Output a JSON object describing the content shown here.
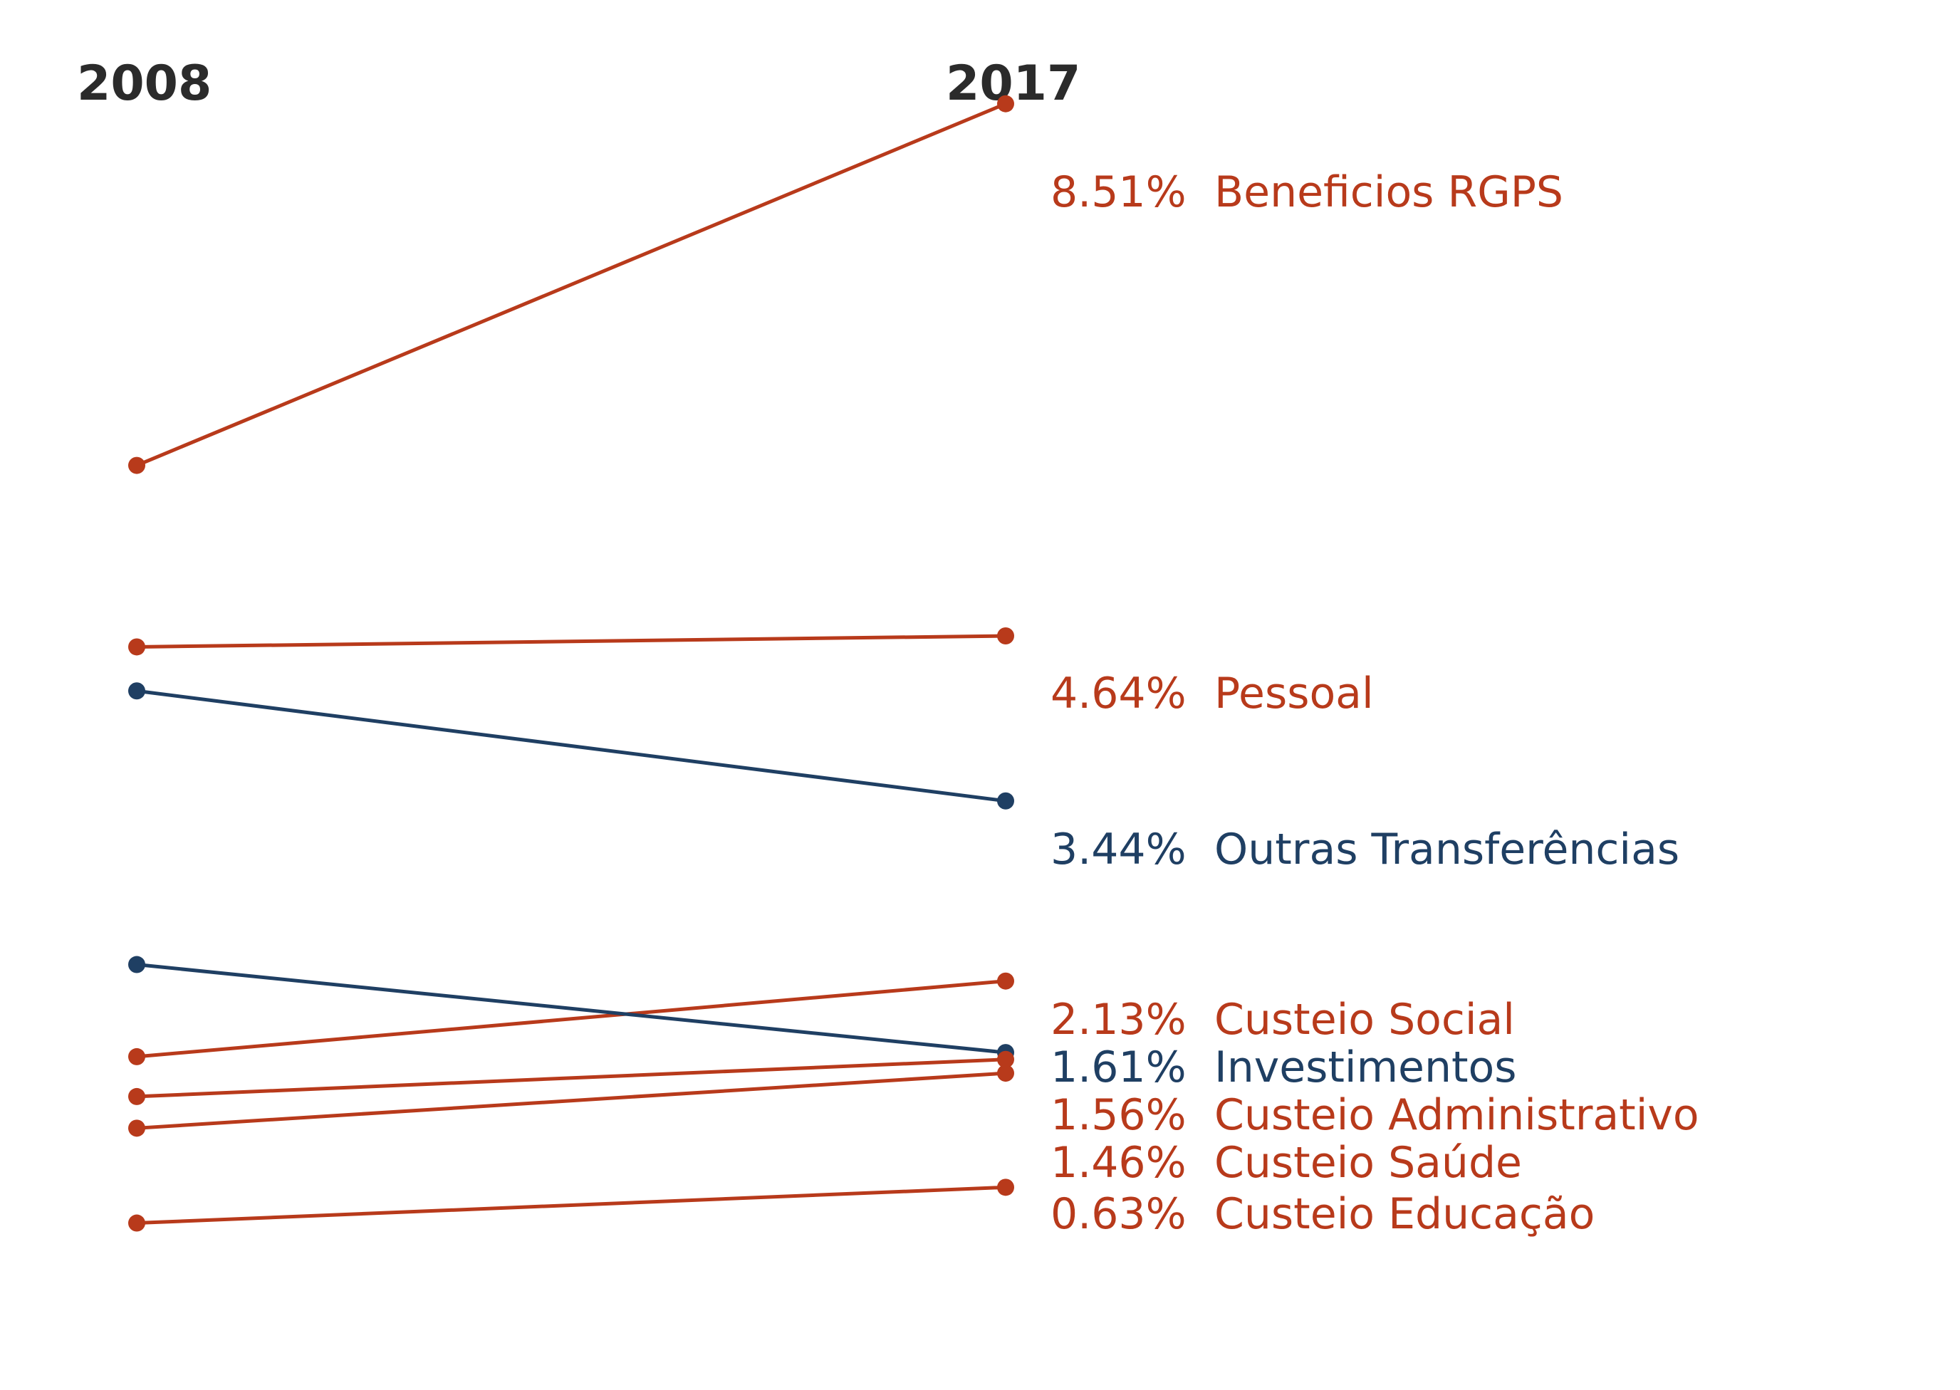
{
  "chart_data": {
    "type": "line",
    "x": [
      "2008",
      "2017"
    ],
    "colors": {
      "increase": "#b83a1b",
      "decrease": "#1f3f63"
    },
    "series": [
      {
        "name": "Beneficios RGPS",
        "values": [
          5.88,
          8.51
        ],
        "label_2017": "8.51%",
        "trend": "increase"
      },
      {
        "name": "Pessoal",
        "values": [
          4.56,
          4.64
        ],
        "label_2017": "4.64%",
        "trend": "increase"
      },
      {
        "name": "Outras Transferências",
        "values": [
          4.24,
          3.44
        ],
        "label_2017": "3.44%",
        "trend": "decrease"
      },
      {
        "name": "Custeio Social",
        "values": [
          1.58,
          2.13
        ],
        "label_2017": "2.13%",
        "trend": "increase"
      },
      {
        "name": "Investimentos",
        "values": [
          2.25,
          1.61
        ],
        "label_2017": "1.61%",
        "trend": "decrease"
      },
      {
        "name": "Custeio Administrativo",
        "values": [
          1.29,
          1.56
        ],
        "label_2017": "1.56%",
        "trend": "increase"
      },
      {
        "name": "Custeio Saúde",
        "values": [
          1.06,
          1.46
        ],
        "label_2017": "1.46%",
        "trend": "increase"
      },
      {
        "name": "Custeio Educação",
        "values": [
          0.37,
          0.63
        ],
        "label_2017": "0.63%",
        "trend": "increase"
      }
    ]
  }
}
